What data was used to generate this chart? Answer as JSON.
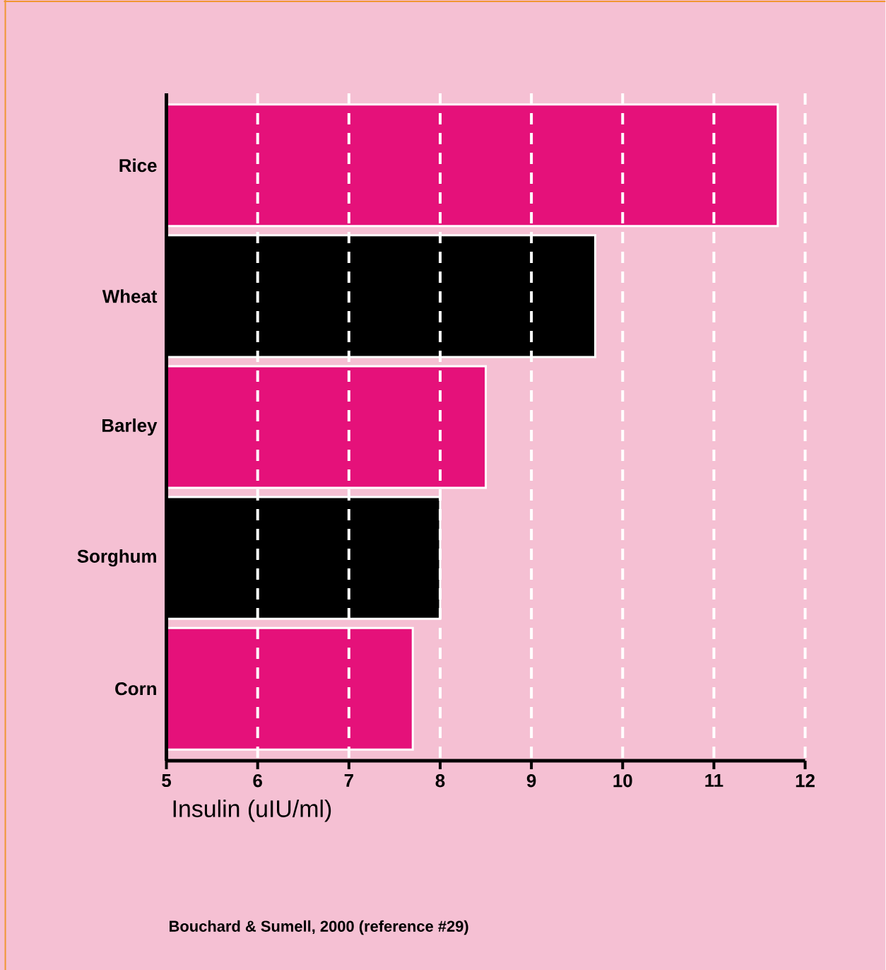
{
  "chart_data": {
    "type": "bar",
    "orientation": "horizontal",
    "categories": [
      "Rice",
      "Wheat",
      "Barley",
      "Sorghum",
      "Corn"
    ],
    "values": [
      11.7,
      9.7,
      8.5,
      8.0,
      7.7
    ],
    "colors": [
      "#e5117a",
      "#000000",
      "#e5117a",
      "#000000",
      "#e5117a"
    ],
    "xlabel": "Insulin (uIU/ml)",
    "annotations": [
      "Bouchard & Sumell, 2000 (reference #29)"
    ],
    "xlim": [
      5,
      12
    ],
    "xticks": [
      5,
      6,
      7,
      8,
      9,
      10,
      11,
      12
    ],
    "grid": "x"
  }
}
